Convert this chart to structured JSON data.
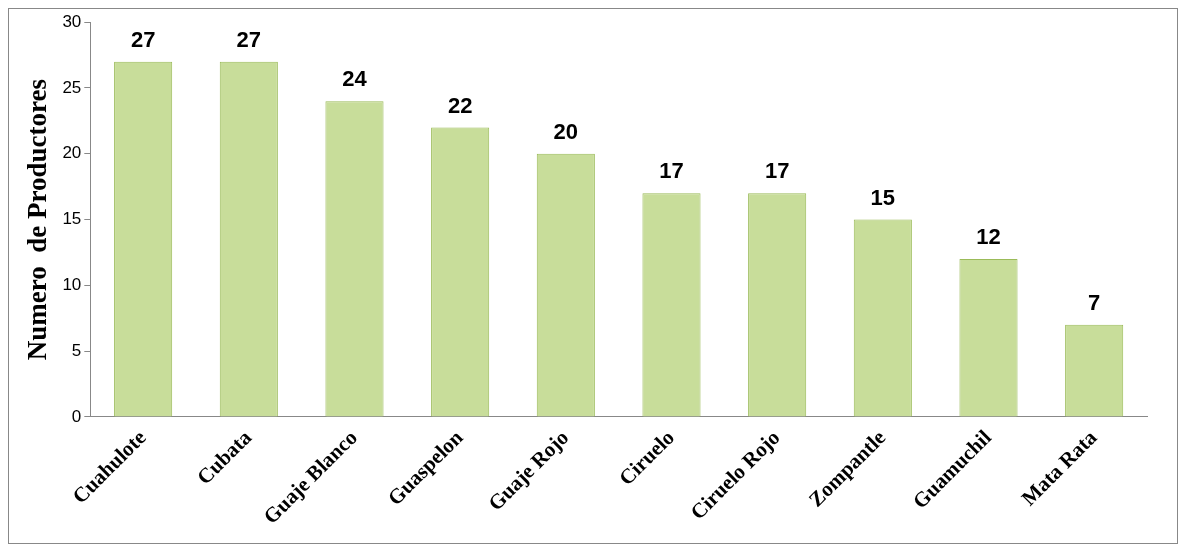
{
  "chart_data": {
    "type": "bar",
    "ylabel": "Numero  de Productores",
    "categories": [
      "Cuahulote",
      "Cubata",
      "Guaje Blanco",
      "Guaspelon",
      "Guaje Rojo",
      "Ciruelo",
      "Ciruelo Rojo",
      "Zompantle",
      "Guamuchil",
      "Mata Rata"
    ],
    "values": [
      27,
      27,
      24,
      22,
      20,
      17,
      17,
      15,
      12,
      7
    ],
    "color": "#c8dd9a",
    "ylim": [
      0,
      30
    ],
    "yticks": [
      0,
      5,
      10,
      15,
      20,
      25,
      30
    ],
    "grid": false,
    "legend": false,
    "data_labels": true
  }
}
